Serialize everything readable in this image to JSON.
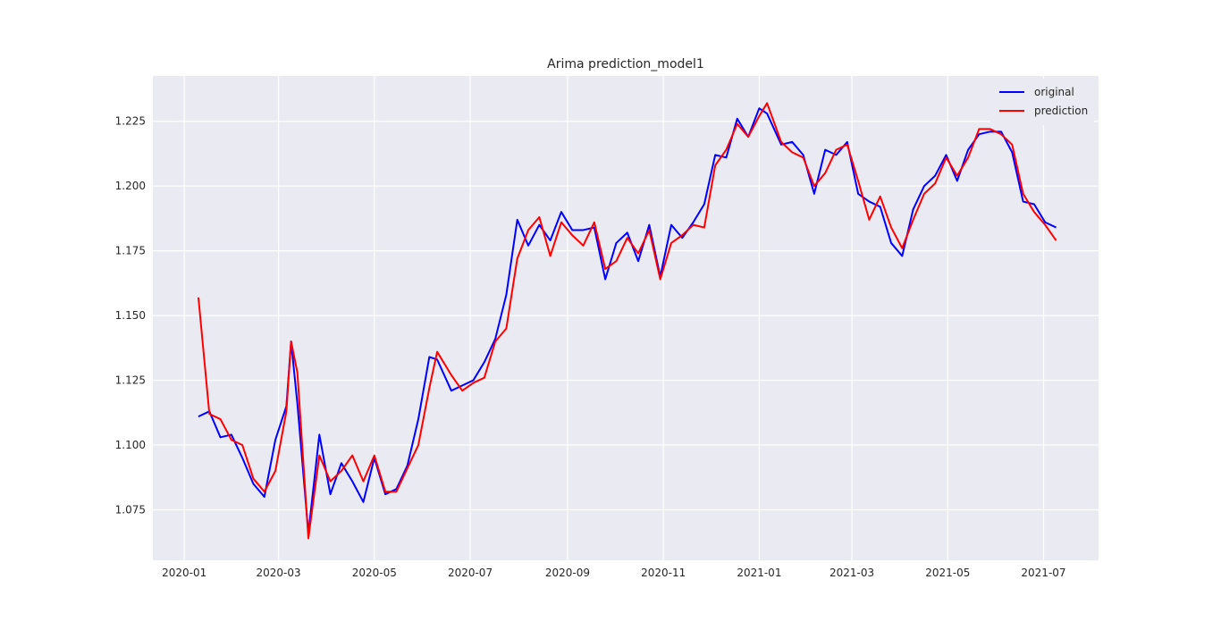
{
  "chart_data": {
    "type": "line",
    "title": "Arima prediction_model1",
    "xlabel": "",
    "ylabel": "",
    "xlim": [
      "2019-12-12",
      "2021-08-05"
    ],
    "ylim": [
      1.0555,
      1.2425
    ],
    "x_ticks": [
      "2020-01",
      "2020-03",
      "2020-05",
      "2020-07",
      "2020-09",
      "2020-11",
      "2021-01",
      "2021-03",
      "2021-05",
      "2021-07"
    ],
    "y_ticks": [
      1.075,
      1.1,
      1.125,
      1.15,
      1.175,
      1.2,
      1.225
    ],
    "y_tick_labels": [
      "1.075",
      "1.100",
      "1.125",
      "1.150",
      "1.175",
      "1.200",
      "1.225"
    ],
    "grid": true,
    "legend_position": "top-right",
    "x": [
      "2020-01-10",
      "2020-01-17",
      "2020-01-24",
      "2020-01-31",
      "2020-02-07",
      "2020-02-14",
      "2020-02-21",
      "2020-02-28",
      "2020-03-06",
      "2020-03-09",
      "2020-03-13",
      "2020-03-20",
      "2020-03-27",
      "2020-04-03",
      "2020-04-10",
      "2020-04-17",
      "2020-04-24",
      "2020-05-01",
      "2020-05-08",
      "2020-05-15",
      "2020-05-22",
      "2020-05-29",
      "2020-06-05",
      "2020-06-10",
      "2020-06-19",
      "2020-06-26",
      "2020-07-03",
      "2020-07-10",
      "2020-07-17",
      "2020-07-24",
      "2020-07-31",
      "2020-08-07",
      "2020-08-14",
      "2020-08-21",
      "2020-08-28",
      "2020-09-04",
      "2020-09-11",
      "2020-09-18",
      "2020-09-25",
      "2020-10-02",
      "2020-10-09",
      "2020-10-16",
      "2020-10-23",
      "2020-10-30",
      "2020-11-06",
      "2020-11-13",
      "2020-11-20",
      "2020-11-27",
      "2020-12-04",
      "2020-12-11",
      "2020-12-18",
      "2020-12-25",
      "2021-01-01",
      "2021-01-06",
      "2021-01-15",
      "2021-01-22",
      "2021-01-29",
      "2021-02-05",
      "2021-02-12",
      "2021-02-19",
      "2021-02-26",
      "2021-03-05",
      "2021-03-12",
      "2021-03-19",
      "2021-03-26",
      "2021-04-02",
      "2021-04-09",
      "2021-04-16",
      "2021-04-23",
      "2021-04-30",
      "2021-05-07",
      "2021-05-14",
      "2021-05-21",
      "2021-05-28",
      "2021-06-04",
      "2021-06-11",
      "2021-06-18",
      "2021-06-25",
      "2021-07-02",
      "2021-07-09"
    ],
    "series": [
      {
        "name": "original",
        "color": "#0000ff",
        "values": [
          1.111,
          1.113,
          1.103,
          1.104,
          1.095,
          1.085,
          1.08,
          1.102,
          1.115,
          1.14,
          1.116,
          1.066,
          1.104,
          1.081,
          1.093,
          1.086,
          1.078,
          1.095,
          1.081,
          1.083,
          1.092,
          1.11,
          1.134,
          1.133,
          1.121,
          1.123,
          1.125,
          1.132,
          1.141,
          1.158,
          1.187,
          1.177,
          1.185,
          1.179,
          1.19,
          1.183,
          1.183,
          1.184,
          1.164,
          1.178,
          1.182,
          1.171,
          1.185,
          1.165,
          1.185,
          1.18,
          1.186,
          1.193,
          1.212,
          1.211,
          1.226,
          1.219,
          1.23,
          1.228,
          1.216,
          1.217,
          1.212,
          1.197,
          1.214,
          1.212,
          1.217,
          1.197,
          1.194,
          1.192,
          1.178,
          1.173,
          1.191,
          1.2,
          1.204,
          1.212,
          1.202,
          1.214,
          1.22,
          1.221,
          1.221,
          1.213,
          1.194,
          1.193,
          1.186,
          1.184
        ]
      },
      {
        "name": "prediction",
        "color": "#ff0000",
        "values": [
          1.157,
          1.112,
          1.11,
          1.102,
          1.1,
          1.087,
          1.082,
          1.09,
          1.113,
          1.14,
          1.128,
          1.064,
          1.096,
          1.086,
          1.09,
          1.096,
          1.086,
          1.096,
          1.082,
          1.082,
          1.091,
          1.1,
          1.122,
          1.136,
          1.127,
          1.121,
          1.124,
          1.126,
          1.14,
          1.145,
          1.172,
          1.183,
          1.188,
          1.173,
          1.186,
          1.181,
          1.177,
          1.186,
          1.168,
          1.171,
          1.18,
          1.174,
          1.183,
          1.164,
          1.178,
          1.181,
          1.185,
          1.184,
          1.208,
          1.214,
          1.224,
          1.219,
          1.227,
          1.232,
          1.217,
          1.213,
          1.211,
          1.2,
          1.205,
          1.214,
          1.216,
          1.202,
          1.187,
          1.196,
          1.184,
          1.176,
          1.187,
          1.197,
          1.201,
          1.211,
          1.204,
          1.211,
          1.222,
          1.222,
          1.22,
          1.216,
          1.197,
          1.19,
          1.185,
          1.179
        ]
      }
    ]
  }
}
